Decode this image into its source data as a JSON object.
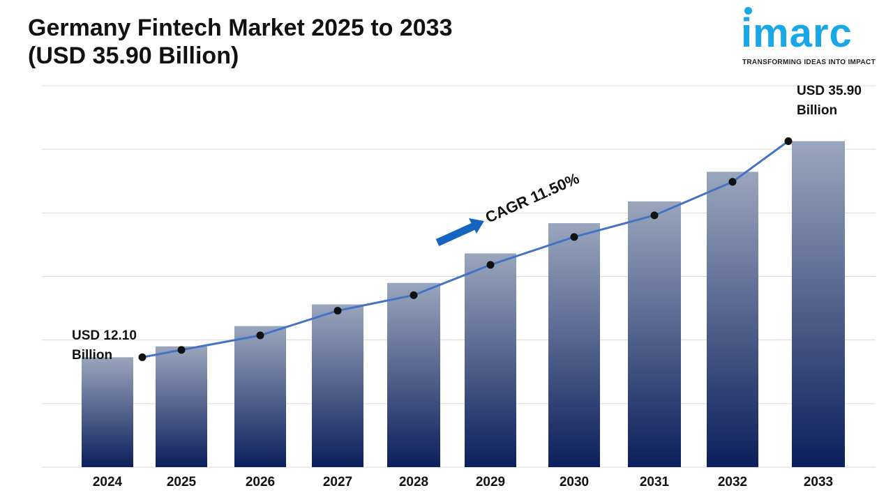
{
  "title": {
    "line1": "Germany Fintech Market 2025 to 2033",
    "line2": "(USD 35.90 Billion)"
  },
  "logo": {
    "word": "imarc",
    "tagline": "TRANSFORMING IDEAS INTO IMPACT",
    "color": "#1aa7e8"
  },
  "chart_data": {
    "type": "bar",
    "categories": [
      "2024",
      "2025",
      "2026",
      "2027",
      "2028",
      "2029",
      "2030",
      "2031",
      "2032",
      "2033"
    ],
    "values": [
      12.1,
      13.3,
      15.54,
      17.92,
      20.29,
      23.54,
      26.87,
      29.27,
      32.53,
      35.9
    ],
    "trend_values": [
      12.1,
      12.91,
      14.51,
      17.23,
      18.94,
      22.28,
      25.35,
      27.73,
      31.42,
      35.9
    ],
    "annotations": {
      "start": {
        "line1": "USD 12.10",
        "line2": "Billion"
      },
      "end": {
        "line1": "USD 35.90",
        "line2": "Billion"
      },
      "cagr": "CAGR 11.50%"
    },
    "ylim": [
      0,
      43
    ],
    "grid": true,
    "colors": {
      "bar_top": "#9aa6bd",
      "bar_bottom": "#0b1f5c",
      "line": "#4472c4",
      "marker": "#111111",
      "arrow": "#1565c0",
      "grid": "#d9d9d9"
    }
  }
}
